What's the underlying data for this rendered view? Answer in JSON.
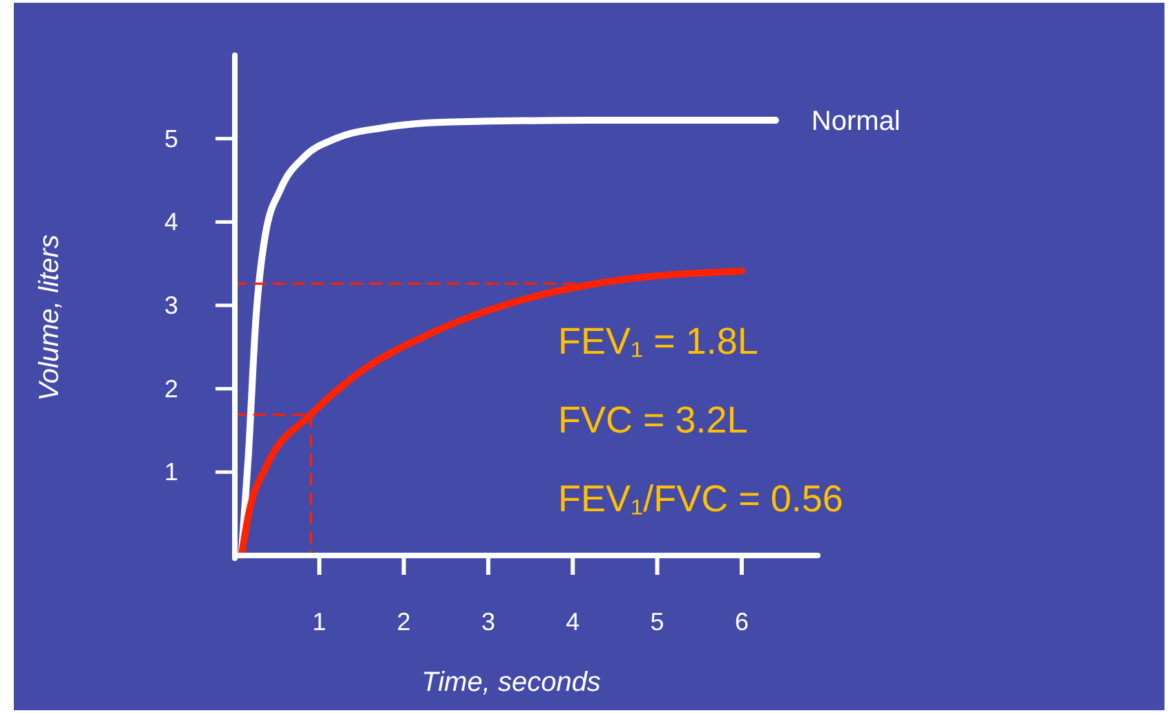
{
  "chart_data": {
    "type": "line",
    "xlabel": "Time, seconds",
    "ylabel": "Volume, liters",
    "xlim": [
      0,
      6.9
    ],
    "ylim": [
      0,
      6
    ],
    "xticks": [
      1,
      2,
      3,
      4,
      5,
      6
    ],
    "yticks": [
      1,
      2,
      3,
      4,
      5
    ],
    "grid": false,
    "legend": false,
    "marker": "none",
    "series": [
      {
        "name": "Normal",
        "color": "#ffffff",
        "x": [
          0.08,
          0.16,
          0.25,
          0.36,
          0.54,
          0.82,
          1.19,
          1.75,
          2.57,
          4.2,
          6.4
        ],
        "values": [
          0.03,
          1.19,
          2.85,
          3.84,
          4.39,
          4.78,
          5.0,
          5.13,
          5.2,
          5.22,
          5.22
        ]
      },
      {
        "color": "#ff2200",
        "x": [
          0.08,
          0.16,
          0.38,
          0.9,
          1.47,
          2.29,
          3.38,
          4.46,
          6.0
        ],
        "values": [
          0,
          0.48,
          1.08,
          1.69,
          2.19,
          2.65,
          3.06,
          3.29,
          3.41
        ]
      },
      {
        "color": "#ff2200",
        "line_style": "dashed",
        "x": [
          0,
          4.46
        ],
        "values": [
          3.26,
          3.26
        ]
      },
      {
        "color": "#ff2200",
        "line_style": "dashed",
        "x": [
          0,
          0.9,
          0.9
        ],
        "values": [
          1.69,
          1.69,
          0
        ]
      }
    ],
    "annotations": [
      "FEV₁ = 1.8L",
      "FVC = 3.2L",
      "FEV₁/FVC = 0.56"
    ]
  }
}
